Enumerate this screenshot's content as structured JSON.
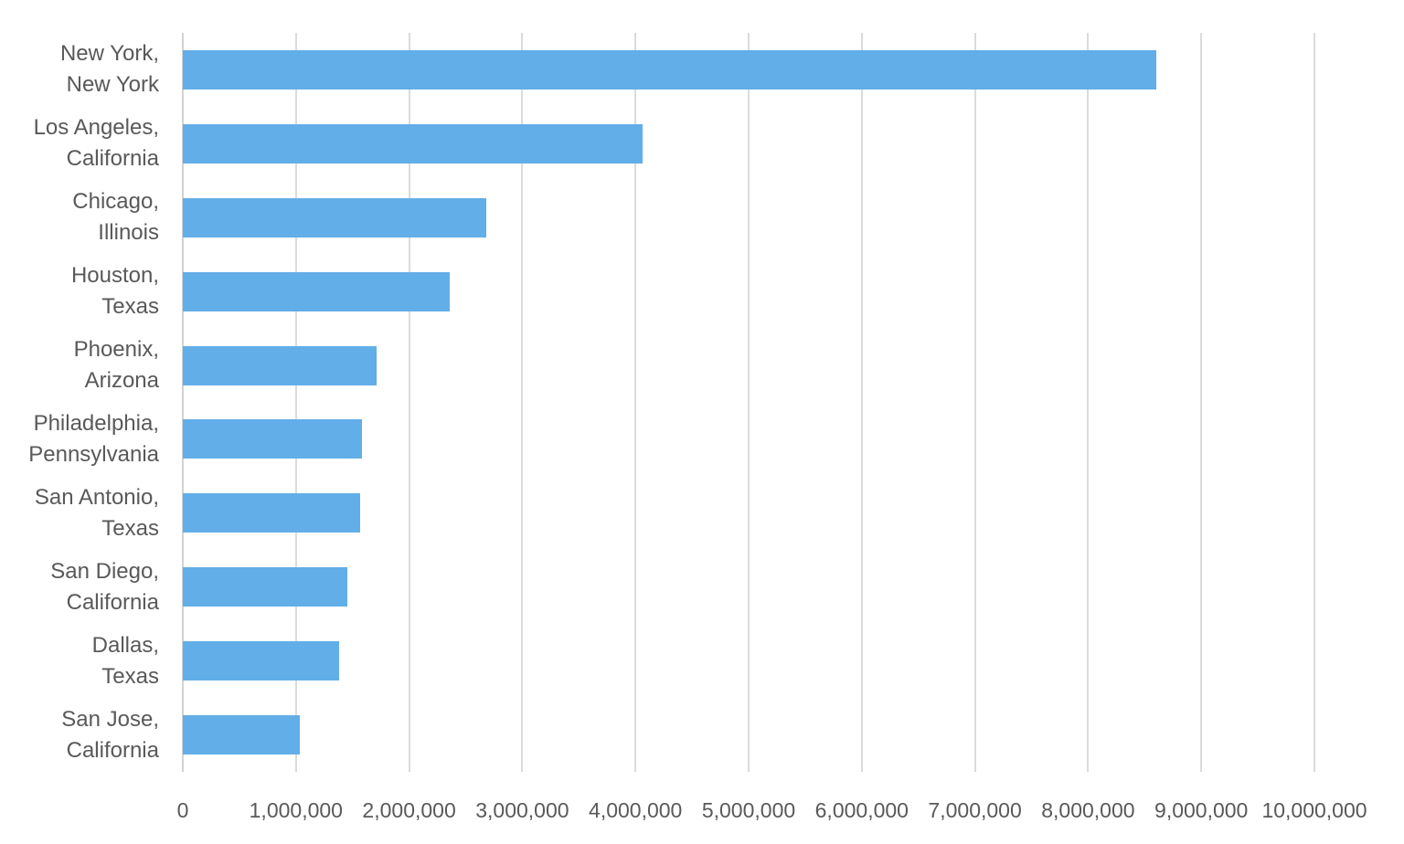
{
  "chart_data": {
    "type": "bar",
    "orientation": "horizontal",
    "title": "",
    "xlabel": "",
    "ylabel": "",
    "categories": [
      [
        "New York,",
        "New York"
      ],
      [
        "Los Angeles,",
        "California"
      ],
      [
        "Chicago,",
        "Illinois"
      ],
      [
        "Houston,",
        "Texas"
      ],
      [
        "Phoenix,",
        "Arizona"
      ],
      [
        "Philadelphia,",
        "Pennsylvania"
      ],
      [
        "San Antonio,",
        "Texas"
      ],
      [
        "San Diego,",
        "California"
      ],
      [
        "Dallas,",
        "Texas"
      ],
      [
        "San Jose,",
        "California"
      ]
    ],
    "values": [
      8600000,
      4060000,
      2680000,
      2360000,
      1710000,
      1580000,
      1570000,
      1450000,
      1380000,
      1030000
    ],
    "xlim": [
      0,
      10000000
    ],
    "x_tick_interval": 1000000,
    "x_tick_labels": [
      "0",
      "1,000,000",
      "2,000,000",
      "3,000,000",
      "4,000,000",
      "5,000,000",
      "6,000,000",
      "7,000,000",
      "8,000,000",
      "9,000,000",
      "10,000,000"
    ],
    "grid": true,
    "legend": false,
    "colors": {
      "bar": "#62aee8",
      "gridline": "#dbdbdb",
      "axis_line": "#d2d2d2",
      "text": "#595959",
      "background": "#ffffff"
    }
  }
}
